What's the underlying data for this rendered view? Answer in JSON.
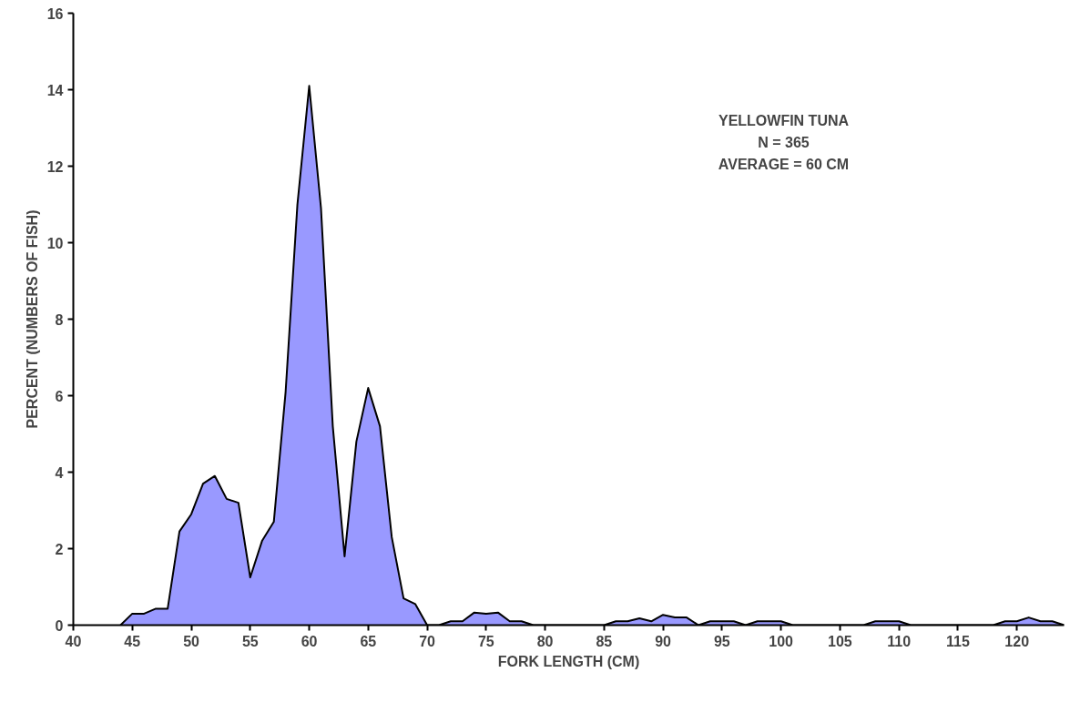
{
  "chart_data": {
    "type": "area",
    "xlabel": "FORK LENGTH (CM)",
    "ylabel": "PERCENT (NUMBERS OF FISH)",
    "annotations": [
      "YELLOWFIN TUNA",
      "N = 365",
      "AVERAGE = 60 CM"
    ],
    "x": [
      44,
      45,
      46,
      47,
      48,
      49,
      50,
      51,
      52,
      53,
      54,
      55,
      56,
      57,
      58,
      59,
      60,
      61,
      62,
      63,
      64,
      65,
      66,
      67,
      68,
      69,
      70,
      71,
      72,
      73,
      74,
      75,
      76,
      77,
      78,
      79,
      80,
      81,
      82,
      83,
      84,
      85,
      86,
      87,
      88,
      89,
      90,
      91,
      92,
      93,
      94,
      95,
      96,
      97,
      98,
      99,
      100,
      101,
      102,
      103,
      104,
      105,
      106,
      107,
      108,
      109,
      110,
      111,
      112,
      113,
      114,
      115,
      116,
      117,
      118,
      119,
      120,
      121,
      122,
      123,
      124
    ],
    "series": [
      {
        "color": "#9999ff",
        "values": [
          0,
          0.3,
          0.3,
          0.43,
          0.43,
          2.45,
          2.9,
          3.7,
          3.9,
          3.3,
          3.2,
          1.25,
          2.2,
          2.7,
          6.1,
          11.0,
          14.1,
          10.9,
          5.2,
          1.8,
          4.8,
          6.2,
          5.2,
          2.3,
          0.7,
          0.55,
          0,
          0,
          0.1,
          0.1,
          0.33,
          0.3,
          0.33,
          0.1,
          0.1,
          0,
          0,
          0,
          0,
          0,
          0,
          0,
          0.1,
          0.1,
          0.18,
          0.1,
          0.27,
          0.2,
          0.2,
          0,
          0.1,
          0.1,
          0.1,
          0,
          0.1,
          0.1,
          0.1,
          0,
          0,
          0,
          0,
          0,
          0,
          0,
          0.1,
          0.1,
          0.1,
          0,
          0,
          0,
          0,
          0,
          0,
          0,
          0,
          0.1,
          0.1,
          0.2,
          0.1,
          0.1,
          0
        ]
      }
    ],
    "xlim": [
      40,
      124
    ],
    "ylim": [
      0,
      16
    ],
    "xticks": [
      40,
      45,
      50,
      55,
      60,
      65,
      70,
      75,
      80,
      85,
      90,
      95,
      100,
      105,
      110,
      115,
      120
    ],
    "yticks": [
      0,
      2,
      4,
      6,
      8,
      10,
      12,
      14,
      16
    ],
    "grid": false
  }
}
